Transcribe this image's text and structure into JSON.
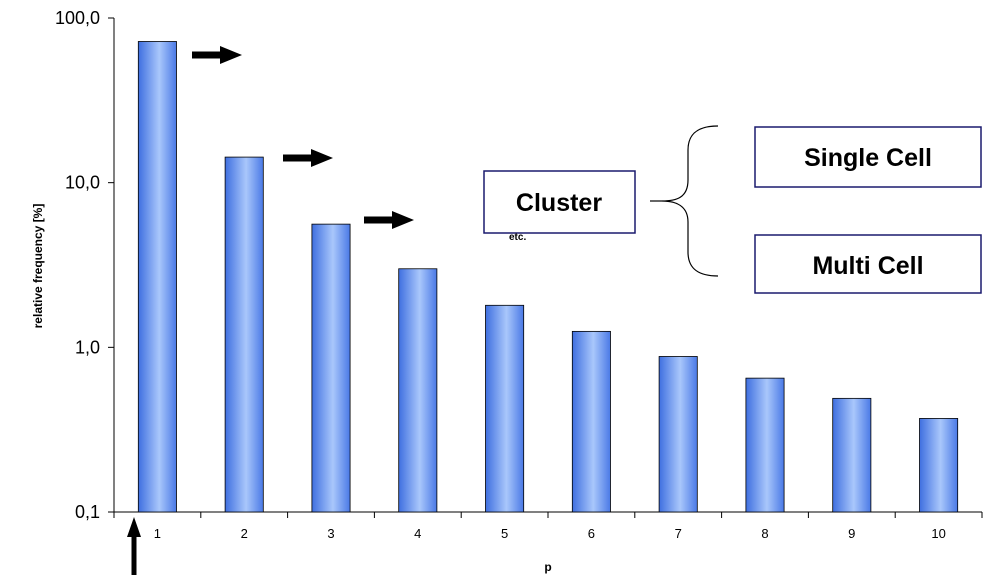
{
  "chart_data": {
    "type": "bar",
    "categories": [
      "1",
      "2",
      "3",
      "4",
      "5",
      "6",
      "7",
      "8",
      "9",
      "10"
    ],
    "values": [
      72,
      14.3,
      5.6,
      3.0,
      1.8,
      1.25,
      0.88,
      0.65,
      0.49,
      0.37
    ],
    "title": "",
    "xlabel": "p",
    "ylabel": "relative frequency [%]",
    "ylim": [
      0.1,
      100
    ],
    "yscale": "log",
    "yticks": [
      "0,1",
      "1,0",
      "10,0",
      "100,0"
    ],
    "grid": false,
    "bar_color": "#6f9df2"
  },
  "annotations": {
    "cluster_label": "Cluster",
    "etc_label": "etc.",
    "single_cell_label": "Single Cell",
    "multi_cell_label": "Multi Cell",
    "box_border_color": "#1a1a6e",
    "arrow_icon": "right-arrow-icon",
    "up_arrow_icon": "up-arrow-icon",
    "brace_icon": "curly-brace-icon"
  }
}
